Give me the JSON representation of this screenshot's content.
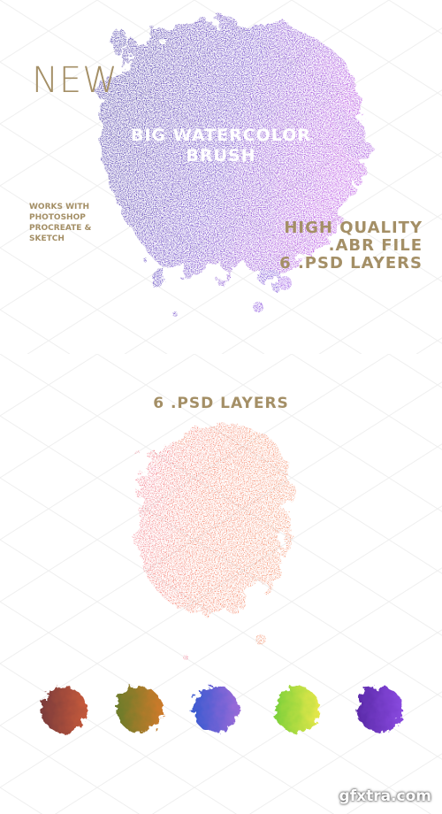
{
  "hero": {
    "badge": "NEW",
    "title_line1": "BIG WATERCOLOR",
    "title_line2": "BRUSH",
    "works_with": [
      "WORKS WITH",
      "PHOTOSHOP",
      "PROCREATE &",
      "SKETCH"
    ],
    "features": [
      "HIGH QUALITY",
      ".ABR FILE",
      "6 .PSD LAYERS"
    ]
  },
  "layers_section": {
    "title": "6 .PSD LAYERS"
  },
  "watermark": {
    "logo_text": "gfxtra.com"
  },
  "colors": {
    "gold": "#a48f66",
    "purple_start": "#2a1f8f",
    "purple_end": "#b03fe0",
    "orange": "#f05a3a",
    "pink": "#ec4a6a"
  },
  "swatches": [
    {
      "name": "brown-red",
      "colors": [
        "#7a3b3b",
        "#c75a3b"
      ]
    },
    {
      "name": "olive-orange",
      "colors": [
        "#6a7b2a",
        "#d07a2a"
      ]
    },
    {
      "name": "blue-lilac",
      "colors": [
        "#3a5ad0",
        "#9a6ad8"
      ]
    },
    {
      "name": "lime-yellow",
      "colors": [
        "#7ad03a",
        "#e8e84a"
      ]
    },
    {
      "name": "purple-blue",
      "colors": [
        "#5a2aa8",
        "#8a4ae0"
      ]
    }
  ]
}
